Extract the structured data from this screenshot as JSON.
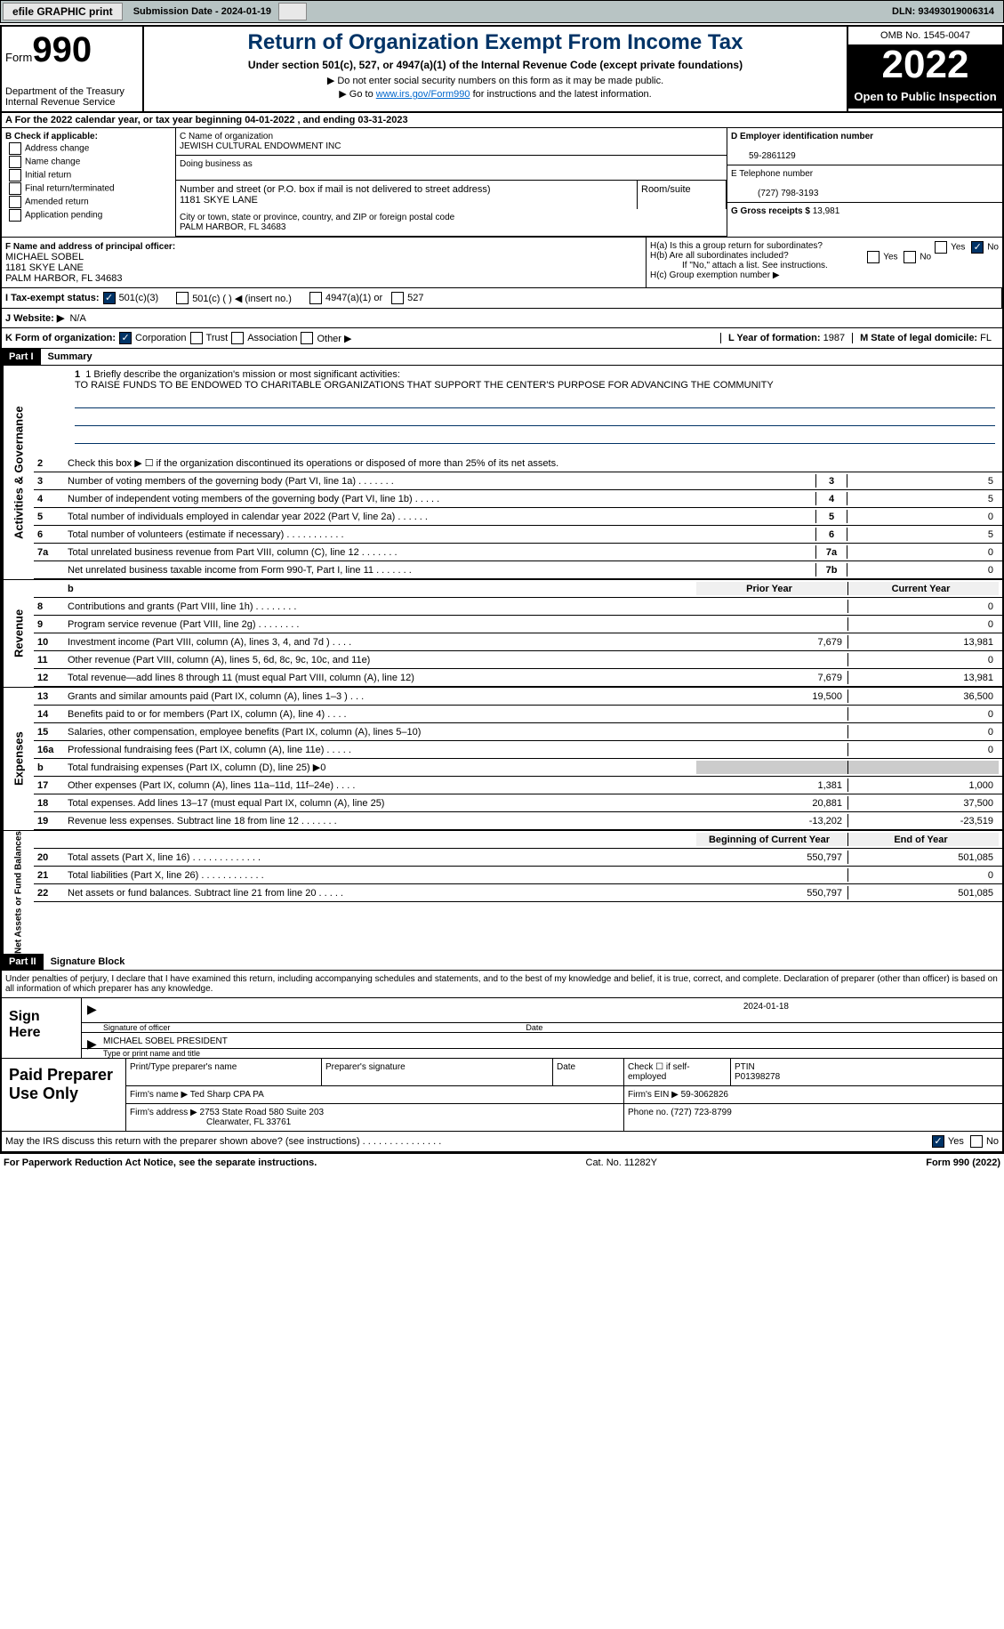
{
  "topbar": {
    "efile": "efile GRAPHIC print",
    "sub_date_label": "Submission Date - 2024-01-19",
    "dln": "DLN: 93493019006314"
  },
  "header": {
    "form_label": "Form",
    "form_num": "990",
    "dept": "Department of the Treasury",
    "irs": "Internal Revenue Service",
    "title": "Return of Organization Exempt From Income Tax",
    "subtitle": "Under section 501(c), 527, or 4947(a)(1) of the Internal Revenue Code (except private foundations)",
    "instr1": "▶ Do not enter social security numbers on this form as it may be made public.",
    "instr2_pre": "▶ Go to ",
    "instr2_link": "www.irs.gov/Form990",
    "instr2_post": " for instructions and the latest information.",
    "omb": "OMB No. 1545-0047",
    "year": "2022",
    "open": "Open to Public Inspection"
  },
  "sectionA": "A  For the 2022 calendar year, or tax year beginning 04-01-2022    , and ending 03-31-2023",
  "colB": {
    "header": "B Check if applicable:",
    "items": [
      "Address change",
      "Name change",
      "Initial return",
      "Final return/terminated",
      "Amended return",
      "Application pending"
    ]
  },
  "colC": {
    "name_label": "C Name of organization",
    "name": "JEWISH CULTURAL ENDOWMENT INC",
    "dba": "Doing business as",
    "addr_label": "Number and street (or P.O. box if mail is not delivered to street address)",
    "room": "Room/suite",
    "addr": "1181 SKYE LANE",
    "city_label": "City or town, state or province, country, and ZIP or foreign postal code",
    "city": "PALM HARBOR, FL  34683"
  },
  "colDE": {
    "d_label": "D Employer identification number",
    "d_val": "59-2861129",
    "e_label": "E Telephone number",
    "e_val": "(727) 798-3193",
    "g_label": "G Gross receipts $ ",
    "g_val": "13,981"
  },
  "rowF": {
    "label": "F Name and address of principal officer:",
    "name": "MICHAEL SOBEL",
    "addr1": "1181 SKYE LANE",
    "addr2": "PALM HARBOR, FL  34683"
  },
  "rowH": {
    "ha": "H(a)  Is this a group return for subordinates?",
    "hb": "H(b)  Are all subordinates included?",
    "hb_note": "If \"No,\" attach a list. See instructions.",
    "hc": "H(c)  Group exemption number ▶"
  },
  "rowI": {
    "label": "I   Tax-exempt status:",
    "opts": [
      "501(c)(3)",
      "501(c) (  ) ◀ (insert no.)",
      "4947(a)(1) or",
      "527"
    ]
  },
  "rowJ": {
    "label": "J   Website: ▶",
    "val": "N/A"
  },
  "rowK": {
    "label": "K Form of organization:",
    "opts": [
      "Corporation",
      "Trust",
      "Association",
      "Other ▶"
    ],
    "l_label": "L Year of formation: ",
    "l_val": "1987",
    "m_label": "M State of legal domicile: ",
    "m_val": "FL"
  },
  "part1": {
    "hdr": "Part I",
    "title": "Summary"
  },
  "sidebar": {
    "s1": "Activities & Governance",
    "s2": "Revenue",
    "s3": "Expenses",
    "s4": "Net Assets or Fund Balances"
  },
  "mission": {
    "label": "1   Briefly describe the organization's mission or most significant activities:",
    "text": "TO RAISE FUNDS TO BE ENDOWED TO CHARITABLE ORGANIZATIONS THAT SUPPORT THE CENTER'S PURPOSE FOR ADVANCING THE COMMUNITY"
  },
  "line2": "Check this box ▶ ☐ if the organization discontinued its operations or disposed of more than 25% of its net assets.",
  "rows_ag": [
    {
      "n": "3",
      "t": "Number of voting members of the governing body (Part VI, line 1a)   .    .    .    .    .    .    .",
      "b": "3",
      "v": "5"
    },
    {
      "n": "4",
      "t": "Number of independent voting members of the governing body (Part VI, line 1b)  .    .    .    .    .",
      "b": "4",
      "v": "5"
    },
    {
      "n": "5",
      "t": "Total number of individuals employed in calendar year 2022 (Part V, line 2a)  .    .    .    .    .    .",
      "b": "5",
      "v": "0"
    },
    {
      "n": "6",
      "t": "Total number of volunteers (estimate if necessary)    .    .    .    .    .    .    .    .    .    .    .",
      "b": "6",
      "v": "5"
    },
    {
      "n": "7a",
      "t": "Total unrelated business revenue from Part VIII, column (C), line 12   .    .    .    .    .    .    .",
      "b": "7a",
      "v": "0"
    },
    {
      "n": "",
      "t": "Net unrelated business taxable income from Form 990-T, Part I, line 11   .    .    .    .    .    .    .",
      "b": "7b",
      "v": "0"
    }
  ],
  "hdr_py": "Prior Year",
  "hdr_cy": "Current Year",
  "rows_rev": [
    {
      "n": "8",
      "t": "Contributions and grants (Part VIII, line 1h)   .    .    .    .    .    .    .    .",
      "p": "",
      "c": "0"
    },
    {
      "n": "9",
      "t": "Program service revenue (Part VIII, line 2g)    .    .    .    .    .    .    .    .",
      "p": "",
      "c": "0"
    },
    {
      "n": "10",
      "t": "Investment income (Part VIII, column (A), lines 3, 4, and 7d )   .    .    .    .",
      "p": "7,679",
      "c": "13,981"
    },
    {
      "n": "11",
      "t": "Other revenue (Part VIII, column (A), lines 5, 6d, 8c, 9c, 10c, and 11e)",
      "p": "",
      "c": "0"
    },
    {
      "n": "12",
      "t": "Total revenue—add lines 8 through 11 (must equal Part VIII, column (A), line 12)",
      "p": "7,679",
      "c": "13,981"
    }
  ],
  "rows_exp": [
    {
      "n": "13",
      "t": "Grants and similar amounts paid (Part IX, column (A), lines 1–3 )   .    .    .",
      "p": "19,500",
      "c": "36,500"
    },
    {
      "n": "14",
      "t": "Benefits paid to or for members (Part IX, column (A), line 4)   .    .    .    .",
      "p": "",
      "c": "0"
    },
    {
      "n": "15",
      "t": "Salaries, other compensation, employee benefits (Part IX, column (A), lines 5–10)",
      "p": "",
      "c": "0"
    },
    {
      "n": "16a",
      "t": "Professional fundraising fees (Part IX, column (A), line 11e)   .    .    .    .    .",
      "p": "",
      "c": "0"
    },
    {
      "n": "b",
      "t": "Total fundraising expenses (Part IX, column (D), line 25) ▶0",
      "p": "shade",
      "c": "shade"
    },
    {
      "n": "17",
      "t": "Other expenses (Part IX, column (A), lines 11a–11d, 11f–24e)   .    .    .    .",
      "p": "1,381",
      "c": "1,000"
    },
    {
      "n": "18",
      "t": "Total expenses. Add lines 13–17 (must equal Part IX, column (A), line 25)",
      "p": "20,881",
      "c": "37,500"
    },
    {
      "n": "19",
      "t": "Revenue less expenses. Subtract line 18 from line 12  .    .    .    .    .    .    .",
      "p": "-13,202",
      "c": "-23,519"
    }
  ],
  "hdr_boy": "Beginning of Current Year",
  "hdr_eoy": "End of Year",
  "rows_net": [
    {
      "n": "20",
      "t": "Total assets (Part X, line 16)  .    .    .    .    .    .    .    .    .    .    .    .    .",
      "p": "550,797",
      "c": "501,085"
    },
    {
      "n": "21",
      "t": "Total liabilities (Part X, line 26)  .    .    .    .    .    .    .    .    .    .    .    .",
      "p": "",
      "c": "0"
    },
    {
      "n": "22",
      "t": "Net assets or fund balances. Subtract line 21 from line 20   .    .    .    .    .",
      "p": "550,797",
      "c": "501,085"
    }
  ],
  "part2": {
    "hdr": "Part II",
    "title": "Signature Block"
  },
  "sig": {
    "decl": "Under penalties of perjury, I declare that I have examined this return, including accompanying schedules and statements, and to the best of my knowledge and belief, it is true, correct, and complete. Declaration of preparer (other than officer) is based on all information of which preparer has any knowledge.",
    "sign_here": "Sign Here",
    "sig_officer": "Signature of officer",
    "date": "Date",
    "date_val": "2024-01-18",
    "name": "MICHAEL SOBEL PRESIDENT",
    "name_label": "Type or print name and title"
  },
  "prep": {
    "label": "Paid Preparer Use Only",
    "h1": "Print/Type preparer's name",
    "h2": "Preparer's signature",
    "h3": "Date",
    "h4_pre": "Check ☐ if self-employed",
    "h5": "PTIN",
    "ptin": "P01398278",
    "firm_label": "Firm's name    ▶",
    "firm": "Ted Sharp CPA PA",
    "ein_label": "Firm's EIN ▶",
    "ein": "59-3062826",
    "addr_label": "Firm's address ▶",
    "addr1": "2753 State Road 580 Suite 203",
    "addr2": "Clearwater, FL  33761",
    "phone_label": "Phone no. ",
    "phone": "(727) 723-8799"
  },
  "discuss": "May the IRS discuss this return with the preparer shown above? (see instructions)    .    .    .    .    .    .    .    .    .    .    .    .    .    .    .",
  "footer": {
    "left": "For Paperwork Reduction Act Notice, see the separate instructions.",
    "mid": "Cat. No. 11282Y",
    "right": "Form 990 (2022)"
  }
}
